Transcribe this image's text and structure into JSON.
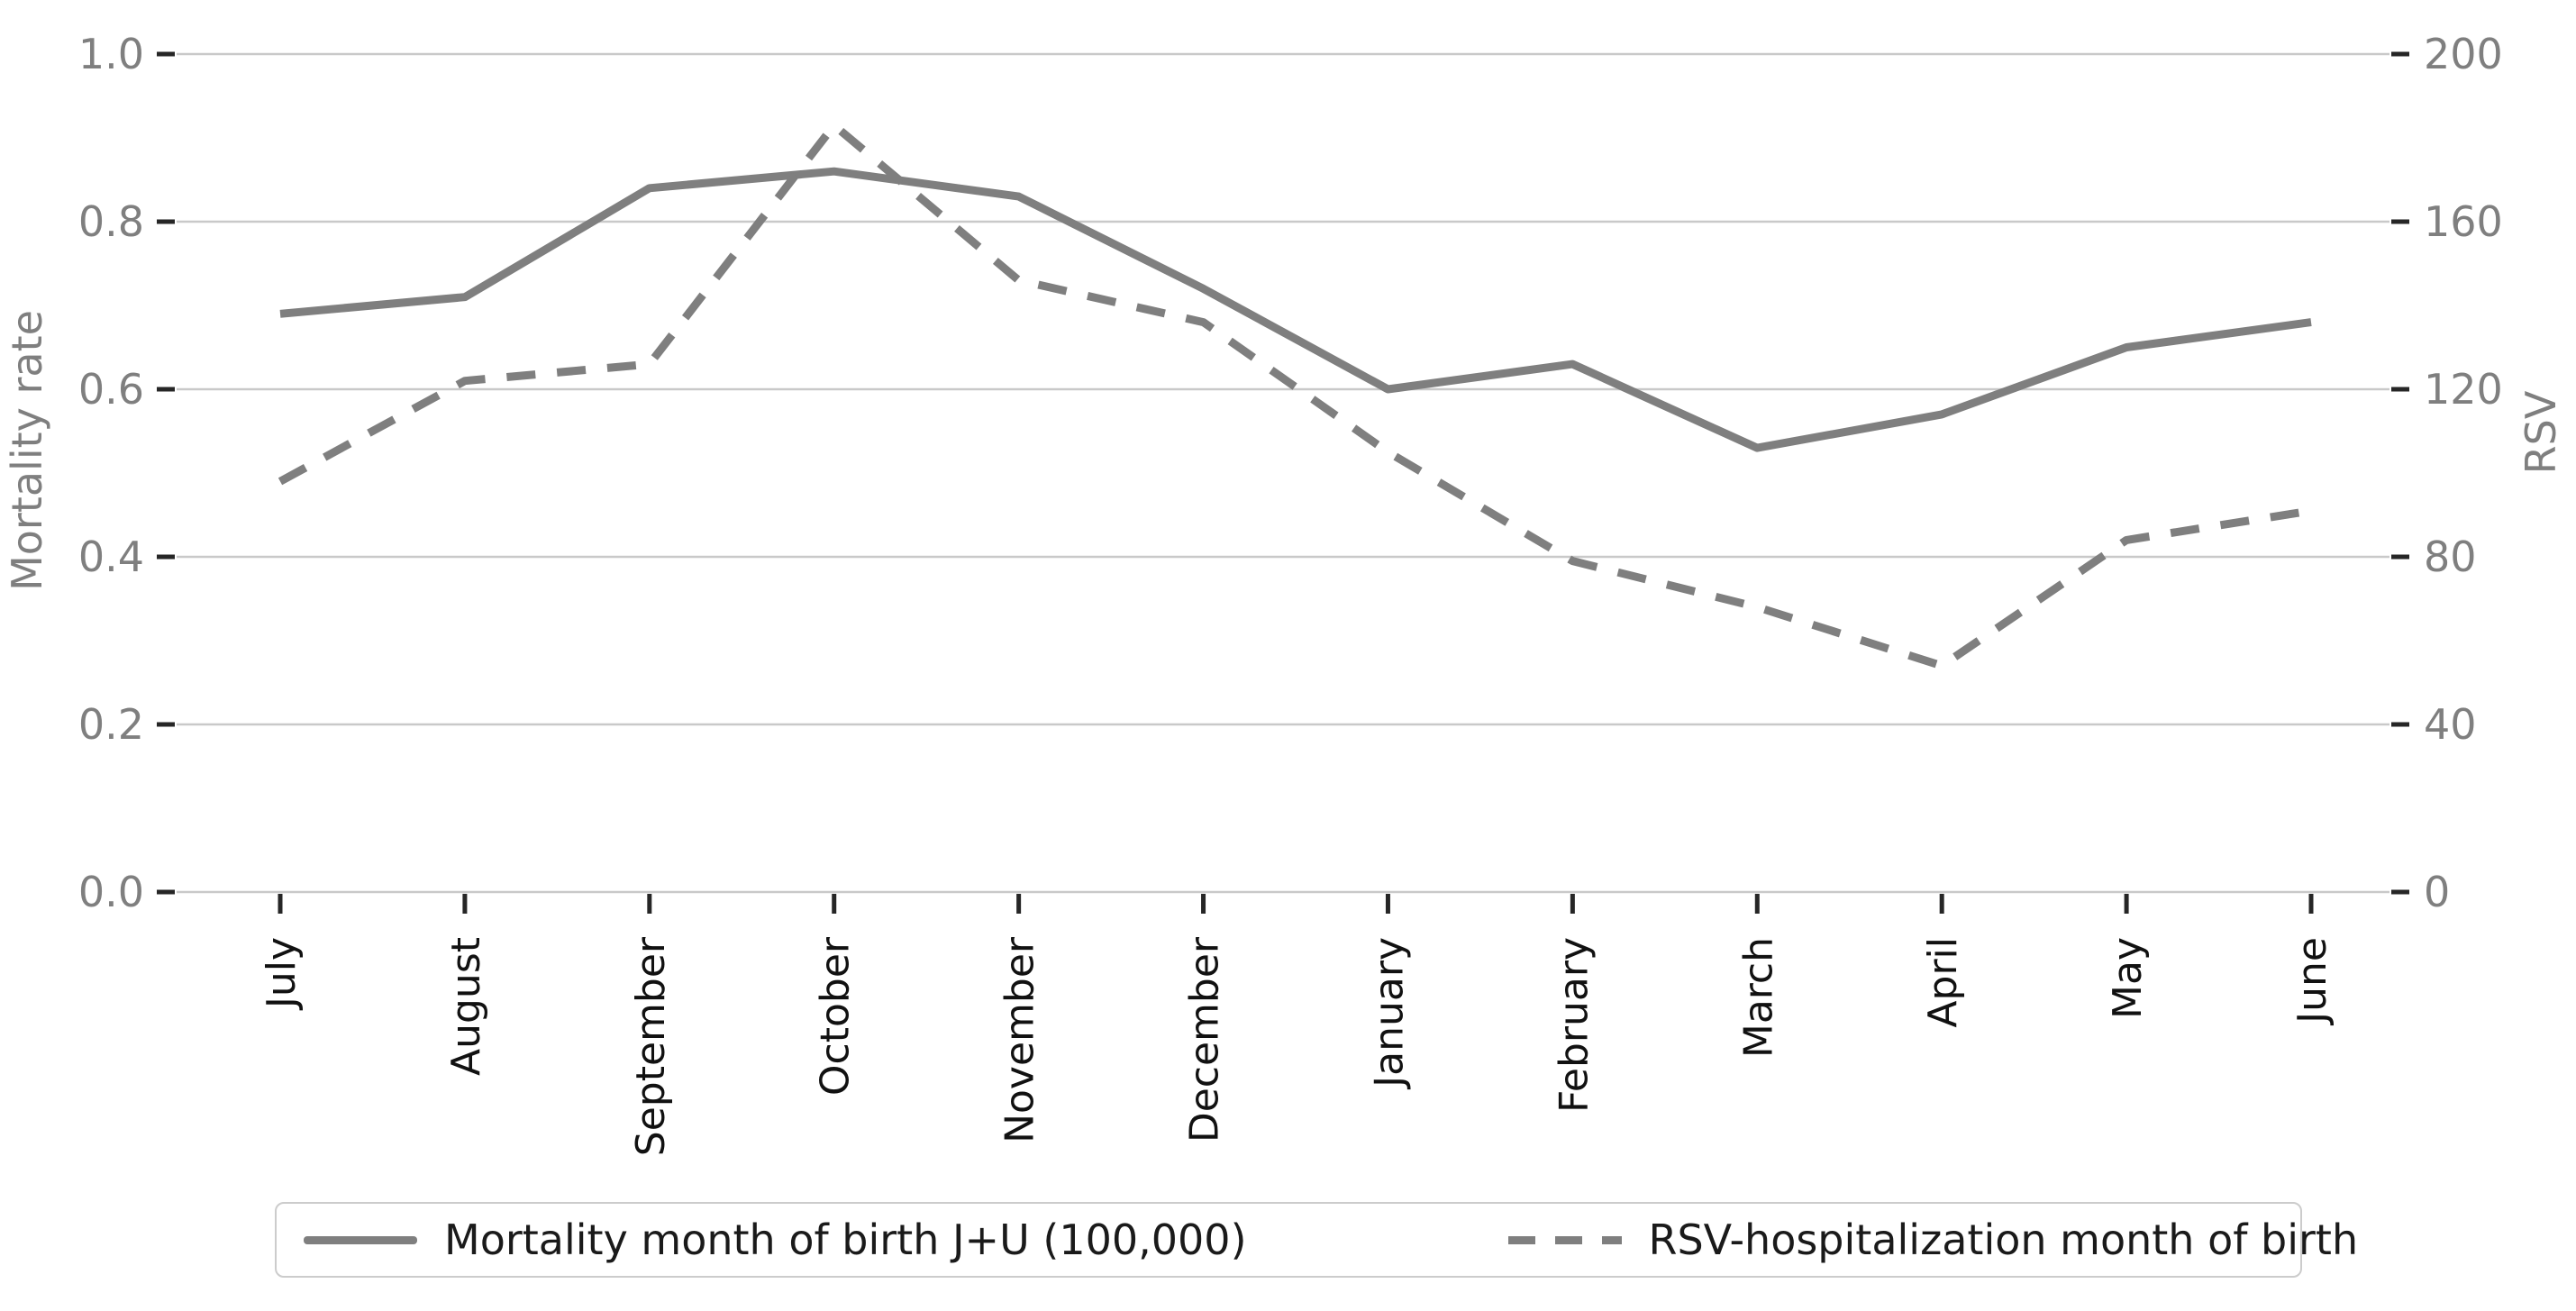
{
  "chart_data": {
    "type": "line",
    "categories": [
      "July",
      "August",
      "September",
      "October",
      "November",
      "December",
      "January",
      "February",
      "March",
      "April",
      "May",
      "June"
    ],
    "series": [
      {
        "name": "Mortality month of birth J+U (100,000)",
        "axis": "left",
        "line_style": "solid",
        "color": "#7f7f7f",
        "values": [
          0.69,
          0.71,
          0.84,
          0.86,
          0.83,
          0.72,
          0.6,
          0.63,
          0.53,
          0.57,
          0.65,
          0.68
        ]
      },
      {
        "name": "RSV-hospitalization month of birth",
        "axis": "right",
        "line_style": "dashed",
        "color": "#7f7f7f",
        "values": [
          98,
          122,
          126,
          183,
          146,
          136,
          105,
          79,
          68,
          54,
          84,
          91
        ]
      }
    ],
    "left_axis": {
      "label": "Mortality rate",
      "min": 0,
      "max": 1,
      "tick_labels": [
        "0.0",
        "0.2",
        "0.4",
        "0.6",
        "0.8",
        "1.0"
      ]
    },
    "right_axis": {
      "label": "RSV",
      "min": 0,
      "max": 200,
      "tick_labels": [
        "0",
        "40",
        "80",
        "120",
        "160",
        "200"
      ]
    },
    "grid": true,
    "legend_position": "bottom"
  },
  "colors": {
    "background": "#ffffff",
    "line": "#7f7f7f",
    "grid": "#c9c9c9",
    "tick_mark": "#262626",
    "tick_label": "#7f7f7f",
    "axis_title": "#7f7f7f",
    "month_label": "#111111",
    "legend_border": "#cccccc",
    "legend_text": "#1a1a1a"
  }
}
